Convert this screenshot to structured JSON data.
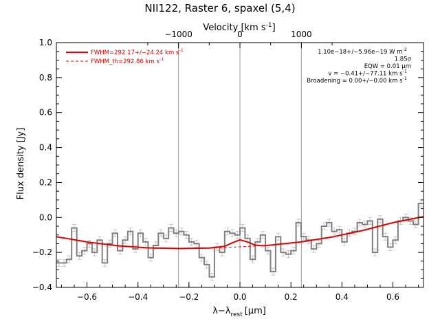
{
  "chart_data": {
    "type": "line",
    "title": "NII122, Raster 6, spaxel (5,4)",
    "xlabel": "λ−λ",
    "xlabel_sub": "rest",
    "xlabel_unit": "[μm]",
    "ylabel": "Flux density [Jy]",
    "top_axis_label": "Velocity [km s",
    "top_axis_sup": "-1",
    "top_axis_close": "]",
    "xlim": [
      -0.72,
      0.72
    ],
    "ylim": [
      -0.4,
      1.0
    ],
    "x_ticks": [
      -0.6,
      -0.4,
      -0.2,
      0.0,
      0.2,
      0.4,
      0.6
    ],
    "x_tick_labels": [
      "−0.6",
      "−0.4",
      "−0.2",
      "0.0",
      "0.2",
      "0.4",
      "0.6"
    ],
    "y_ticks": [
      -0.4,
      -0.2,
      0.0,
      0.2,
      0.4,
      0.6,
      0.8,
      1.0
    ],
    "y_tick_labels": [
      "−0.4",
      "−0.2",
      "0.0",
      "0.2",
      "0.4",
      "0.6",
      "0.8",
      "1.0"
    ],
    "top_ticks_um": [
      -0.241,
      0.0,
      0.241
    ],
    "top_tick_labels": [
      "−1000",
      "0",
      "1000"
    ],
    "vertical_lines_x": [
      -0.241,
      0.0,
      0.241
    ],
    "series": [
      {
        "name": "FWHM=292.17+/−24.24 km s",
        "name_sup": "-1",
        "style": "solid",
        "color": "#e00000",
        "x": [
          -0.72,
          -0.6,
          -0.48,
          -0.36,
          -0.24,
          -0.12,
          -0.06,
          -0.03,
          0.0,
          0.03,
          0.06,
          0.09,
          0.12,
          0.24,
          0.36,
          0.48,
          0.6,
          0.72
        ],
        "y": [
          -0.11,
          -0.14,
          -0.162,
          -0.174,
          -0.178,
          -0.175,
          -0.165,
          -0.145,
          -0.128,
          -0.14,
          -0.158,
          -0.162,
          -0.158,
          -0.14,
          -0.112,
          -0.075,
          -0.03,
          0.005
        ]
      },
      {
        "name": "FWHM_th=292.86 km s",
        "name_sup": "-1",
        "style": "dashed",
        "color": "#e00000",
        "x": [
          -0.72,
          -0.6,
          -0.48,
          -0.36,
          -0.24,
          -0.12,
          0.0,
          0.12,
          0.24,
          0.36,
          0.48,
          0.6,
          0.72
        ],
        "y": [
          -0.11,
          -0.14,
          -0.162,
          -0.174,
          -0.178,
          -0.175,
          -0.168,
          -0.158,
          -0.14,
          -0.112,
          -0.075,
          -0.03,
          0.005
        ]
      },
      {
        "name": "data",
        "style": "step",
        "color": "#808080",
        "x": [
          -0.71,
          -0.69,
          -0.67,
          -0.65,
          -0.63,
          -0.61,
          -0.59,
          -0.57,
          -0.55,
          -0.53,
          -0.51,
          -0.49,
          -0.47,
          -0.45,
          -0.43,
          -0.41,
          -0.39,
          -0.37,
          -0.35,
          -0.33,
          -0.31,
          -0.29,
          -0.27,
          -0.25,
          -0.23,
          -0.21,
          -0.19,
          -0.17,
          -0.15,
          -0.13,
          -0.11,
          -0.09,
          -0.07,
          -0.05,
          -0.03,
          -0.01,
          0.01,
          0.03,
          0.05,
          0.07,
          0.09,
          0.11,
          0.13,
          0.15,
          0.17,
          0.19,
          0.21,
          0.23,
          0.25,
          0.27,
          0.29,
          0.31,
          0.33,
          0.35,
          0.37,
          0.39,
          0.41,
          0.43,
          0.45,
          0.47,
          0.49,
          0.51,
          0.53,
          0.55,
          0.57,
          0.59,
          0.61,
          0.63,
          0.65,
          0.67,
          0.69,
          0.71
        ],
        "y": [
          -0.26,
          -0.26,
          -0.24,
          -0.06,
          -0.22,
          -0.19,
          -0.15,
          -0.2,
          -0.13,
          -0.26,
          -0.15,
          -0.09,
          -0.19,
          -0.13,
          -0.08,
          -0.18,
          -0.09,
          -0.14,
          -0.23,
          -0.16,
          -0.09,
          -0.12,
          -0.06,
          -0.09,
          -0.08,
          -0.1,
          -0.14,
          -0.15,
          -0.23,
          -0.27,
          -0.34,
          -0.17,
          -0.2,
          -0.08,
          -0.09,
          -0.1,
          -0.06,
          -0.12,
          -0.24,
          -0.14,
          -0.1,
          -0.19,
          -0.31,
          -0.11,
          -0.2,
          -0.21,
          -0.19,
          -0.03,
          -0.11,
          -0.13,
          -0.18,
          -0.15,
          -0.05,
          -0.03,
          -0.08,
          -0.07,
          -0.14,
          -0.09,
          -0.08,
          -0.03,
          -0.04,
          -0.02,
          -0.2,
          -0.01,
          -0.11,
          -0.17,
          -0.13,
          -0.02,
          0.0,
          -0.02,
          -0.04,
          0.08
        ]
      }
    ],
    "annotations": [
      "1.10e−18+/−5.96e−19 W m",
      "1.85σ",
      "EQW = 0.01 μm",
      "v = −0.41+/−77.11 km s",
      "Broadening = 0.00+/−0.00 km s"
    ],
    "annotation_sups": [
      "-2",
      "",
      "",
      "-1",
      "-1"
    ],
    "colors": {
      "fit": "#e00000",
      "data": "#808080",
      "errorbar": "#c8c8c8",
      "vline": "#9a9a9a"
    },
    "grid": false,
    "legend_position": "top-left"
  }
}
